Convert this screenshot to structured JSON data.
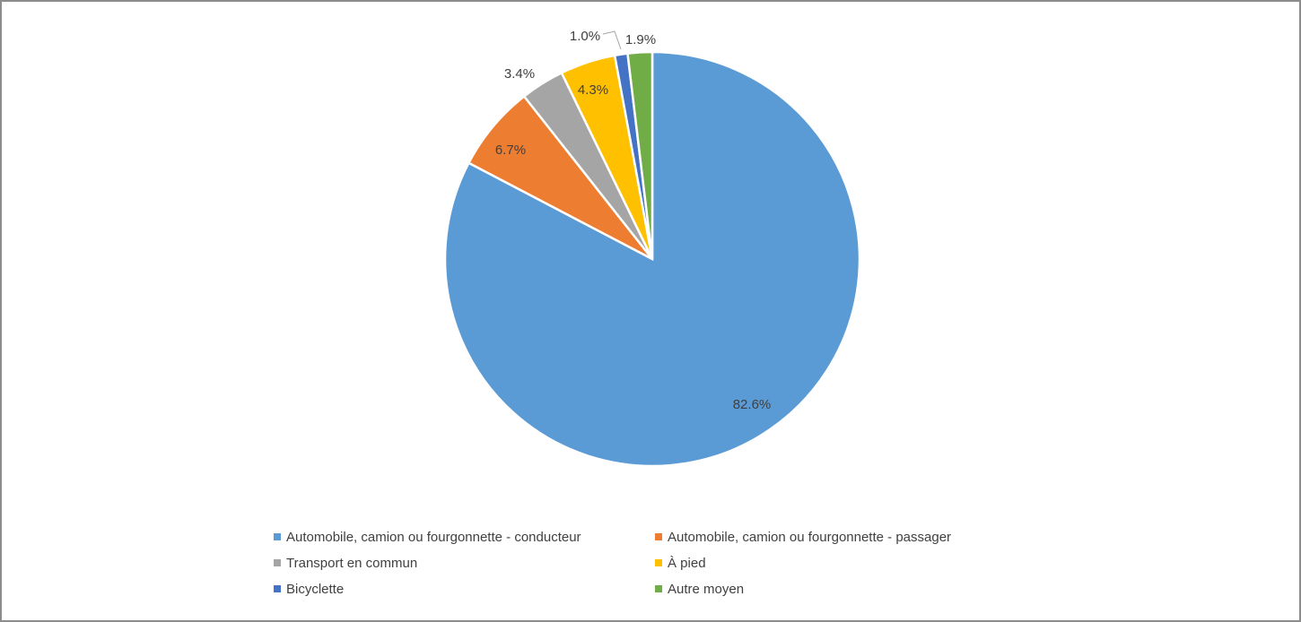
{
  "chart_data": {
    "type": "pie",
    "categories": [
      "Automobile, camion ou fourgonnette - conducteur",
      "Automobile, camion ou fourgonnette - passager",
      "Transport en commun",
      "À pied",
      "Bicyclette",
      "Autre moyen"
    ],
    "values": [
      82.6,
      6.7,
      3.4,
      4.3,
      1.0,
      1.9
    ],
    "data_labels": [
      "82.6%",
      "6.7%",
      "3.4%",
      "4.3%",
      "1.0%",
      "1.9%"
    ],
    "colors": [
      "#5b9bd5",
      "#ed7d31",
      "#a5a5a5",
      "#ffc000",
      "#4472c4",
      "#70ad47"
    ],
    "start_angle_deg": 0,
    "direction": "clockwise",
    "legend_position": "bottom"
  }
}
